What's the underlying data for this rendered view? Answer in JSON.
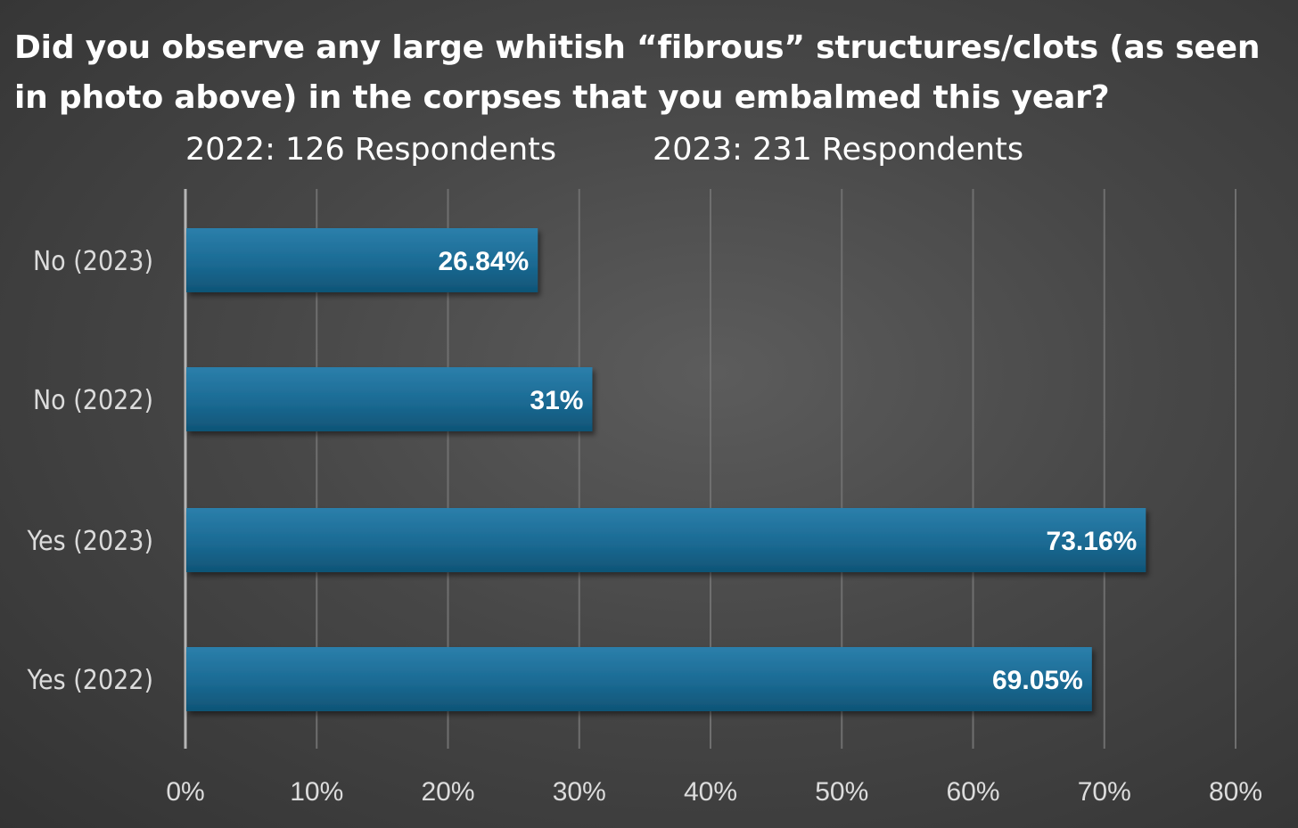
{
  "chart_data": {
    "type": "bar",
    "orientation": "horizontal",
    "title": "Did you observe any large whitish “fibrous” structures/clots (as seen in photo above) in the corpses that you embalmed this year?",
    "subtitles": [
      "2022: 126 Respondents",
      "2023: 231 Respondents"
    ],
    "categories": [
      "No (2023)",
      "No (2022)",
      "Yes (2023)",
      "Yes (2022)"
    ],
    "values": [
      26.84,
      31,
      73.16,
      69.05
    ],
    "data_labels": [
      "26.84%",
      "31%",
      "73.16%",
      "69.05%"
    ],
    "xlim": [
      0,
      80
    ],
    "x_ticks": [
      0,
      10,
      20,
      30,
      40,
      50,
      60,
      70,
      80
    ],
    "x_tick_labels": [
      "0%",
      "10%",
      "20%",
      "30%",
      "40%",
      "50%",
      "60%",
      "70%",
      "80%"
    ],
    "grid": true,
    "legend": "none",
    "colors": {
      "bar": "#1b6a93",
      "bar_light": "#2b7fab",
      "bar_dark": "#0f5476",
      "grid": "#6f6f6f",
      "axis": "#b5b5b5",
      "text": "#ffffff",
      "tick_text": "#dcdcdc"
    }
  }
}
